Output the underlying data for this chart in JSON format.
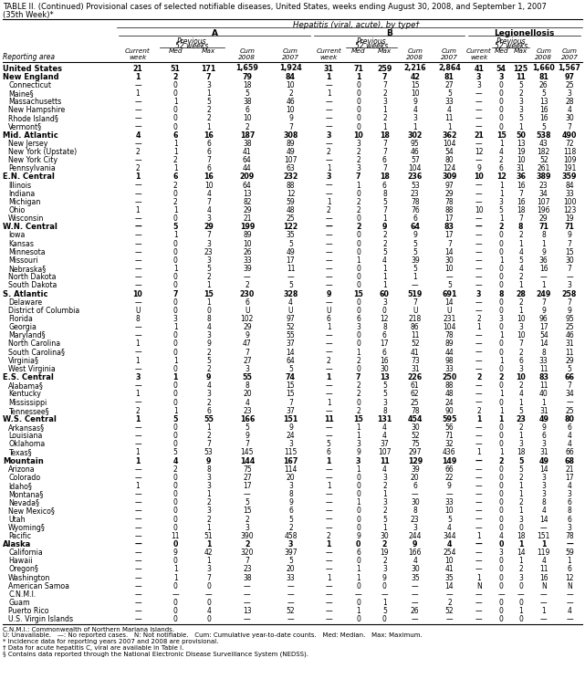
{
  "title1": "TABLE II. (Continued) Provisional cases of selected notifiable diseases, United States, weeks ending August 30, 2008, and September 1, 2007",
  "title2": "(35th Week)*",
  "col_header_top": "Hepatitis (viral, acute), by type†",
  "rows": [
    [
      "United States",
      "21",
      "51",
      "171",
      "1,659",
      "1,924",
      "31",
      "71",
      "259",
      "2,216",
      "2,864",
      "41",
      "54",
      "125",
      "1,660",
      "1,567"
    ],
    [
      "New England",
      "1",
      "2",
      "7",
      "79",
      "84",
      "1",
      "1",
      "7",
      "42",
      "81",
      "3",
      "3",
      "11",
      "81",
      "97"
    ],
    [
      "Connecticut",
      "—",
      "0",
      "3",
      "18",
      "10",
      "—",
      "0",
      "7",
      "15",
      "27",
      "3",
      "0",
      "5",
      "26",
      "25"
    ],
    [
      "Maine§",
      "1",
      "0",
      "1",
      "5",
      "2",
      "1",
      "0",
      "2",
      "10",
      "5",
      "—",
      "0",
      "2",
      "5",
      "3"
    ],
    [
      "Massachusetts",
      "—",
      "1",
      "5",
      "38",
      "46",
      "—",
      "0",
      "3",
      "9",
      "33",
      "—",
      "0",
      "3",
      "13",
      "28"
    ],
    [
      "New Hampshire",
      "—",
      "0",
      "2",
      "6",
      "10",
      "—",
      "0",
      "1",
      "4",
      "4",
      "—",
      "0",
      "3",
      "16",
      "4"
    ],
    [
      "Rhode Island§",
      "—",
      "0",
      "2",
      "10",
      "9",
      "—",
      "0",
      "2",
      "3",
      "11",
      "—",
      "0",
      "5",
      "16",
      "30"
    ],
    [
      "Vermont§",
      "—",
      "0",
      "1",
      "2",
      "7",
      "—",
      "0",
      "1",
      "1",
      "1",
      "—",
      "0",
      "1",
      "5",
      "7"
    ],
    [
      "Mid. Atlantic",
      "4",
      "6",
      "16",
      "187",
      "308",
      "3",
      "10",
      "18",
      "302",
      "362",
      "21",
      "15",
      "50",
      "538",
      "490"
    ],
    [
      "New Jersey",
      "—",
      "1",
      "6",
      "38",
      "89",
      "—",
      "3",
      "7",
      "95",
      "104",
      "—",
      "1",
      "13",
      "43",
      "72"
    ],
    [
      "New York (Upstate)",
      "2",
      "1",
      "6",
      "41",
      "49",
      "2",
      "2",
      "7",
      "46",
      "54",
      "12",
      "4",
      "19",
      "182",
      "118"
    ],
    [
      "New York City",
      "—",
      "2",
      "7",
      "64",
      "107",
      "—",
      "2",
      "6",
      "57",
      "80",
      "—",
      "2",
      "10",
      "52",
      "109"
    ],
    [
      "Pennsylvania",
      "2",
      "1",
      "6",
      "44",
      "63",
      "1",
      "3",
      "7",
      "104",
      "124",
      "9",
      "6",
      "31",
      "261",
      "191"
    ],
    [
      "E.N. Central",
      "1",
      "6",
      "16",
      "209",
      "232",
      "3",
      "7",
      "18",
      "236",
      "309",
      "10",
      "12",
      "36",
      "389",
      "359"
    ],
    [
      "Illinois",
      "—",
      "2",
      "10",
      "64",
      "88",
      "—",
      "1",
      "6",
      "53",
      "97",
      "—",
      "1",
      "16",
      "23",
      "84"
    ],
    [
      "Indiana",
      "—",
      "0",
      "4",
      "13",
      "12",
      "—",
      "0",
      "8",
      "23",
      "29",
      "—",
      "1",
      "7",
      "34",
      "33"
    ],
    [
      "Michigan",
      "—",
      "2",
      "7",
      "82",
      "59",
      "1",
      "2",
      "5",
      "78",
      "78",
      "—",
      "3",
      "16",
      "107",
      "100"
    ],
    [
      "Ohio",
      "1",
      "1",
      "4",
      "29",
      "48",
      "2",
      "2",
      "7",
      "76",
      "88",
      "10",
      "5",
      "18",
      "196",
      "123"
    ],
    [
      "Wisconsin",
      "—",
      "0",
      "3",
      "21",
      "25",
      "—",
      "0",
      "1",
      "6",
      "17",
      "—",
      "1",
      "7",
      "29",
      "19"
    ],
    [
      "W.N. Central",
      "—",
      "5",
      "29",
      "199",
      "122",
      "—",
      "2",
      "9",
      "64",
      "83",
      "—",
      "2",
      "8",
      "71",
      "71"
    ],
    [
      "Iowa",
      "—",
      "1",
      "7",
      "89",
      "35",
      "—",
      "0",
      "2",
      "9",
      "17",
      "—",
      "0",
      "2",
      "8",
      "9"
    ],
    [
      "Kansas",
      "—",
      "0",
      "3",
      "10",
      "5",
      "—",
      "0",
      "2",
      "5",
      "7",
      "—",
      "0",
      "1",
      "1",
      "7"
    ],
    [
      "Minnesota",
      "—",
      "0",
      "23",
      "26",
      "49",
      "—",
      "0",
      "5",
      "5",
      "14",
      "—",
      "0",
      "4",
      "9",
      "15"
    ],
    [
      "Missouri",
      "—",
      "0",
      "3",
      "33",
      "17",
      "—",
      "1",
      "4",
      "39",
      "30",
      "—",
      "1",
      "5",
      "36",
      "30"
    ],
    [
      "Nebraska§",
      "—",
      "1",
      "5",
      "39",
      "11",
      "—",
      "0",
      "1",
      "5",
      "10",
      "—",
      "0",
      "4",
      "16",
      "7"
    ],
    [
      "North Dakota",
      "—",
      "0",
      "2",
      "—",
      "—",
      "—",
      "0",
      "1",
      "1",
      "—",
      "—",
      "0",
      "2",
      "—",
      "—"
    ],
    [
      "South Dakota",
      "—",
      "0",
      "1",
      "2",
      "5",
      "—",
      "0",
      "1",
      "—",
      "5",
      "—",
      "0",
      "1",
      "1",
      "3"
    ],
    [
      "S. Atlantic",
      "10",
      "7",
      "15",
      "230",
      "328",
      "9",
      "15",
      "60",
      "519",
      "691",
      "3",
      "8",
      "28",
      "249",
      "258"
    ],
    [
      "Delaware",
      "—",
      "0",
      "1",
      "6",
      "4",
      "—",
      "0",
      "3",
      "7",
      "14",
      "—",
      "0",
      "2",
      "7",
      "7"
    ],
    [
      "District of Columbia",
      "U",
      "0",
      "0",
      "U",
      "U",
      "U",
      "0",
      "0",
      "U",
      "U",
      "—",
      "0",
      "1",
      "9",
      "9"
    ],
    [
      "Florida",
      "8",
      "3",
      "8",
      "102",
      "97",
      "6",
      "6",
      "12",
      "218",
      "231",
      "2",
      "3",
      "10",
      "96",
      "95"
    ],
    [
      "Georgia",
      "—",
      "1",
      "4",
      "29",
      "52",
      "1",
      "3",
      "8",
      "86",
      "104",
      "1",
      "0",
      "3",
      "17",
      "25"
    ],
    [
      "Maryland§",
      "—",
      "0",
      "3",
      "9",
      "55",
      "—",
      "0",
      "6",
      "11",
      "78",
      "—",
      "1",
      "10",
      "54",
      "46"
    ],
    [
      "North Carolina",
      "1",
      "0",
      "9",
      "47",
      "37",
      "—",
      "0",
      "17",
      "52",
      "89",
      "—",
      "0",
      "7",
      "14",
      "31"
    ],
    [
      "South Carolina§",
      "—",
      "0",
      "2",
      "7",
      "14",
      "—",
      "1",
      "6",
      "41",
      "44",
      "—",
      "0",
      "2",
      "8",
      "11"
    ],
    [
      "Virginia§",
      "1",
      "1",
      "5",
      "27",
      "64",
      "2",
      "2",
      "16",
      "73",
      "98",
      "—",
      "1",
      "6",
      "33",
      "29"
    ],
    [
      "West Virginia",
      "—",
      "0",
      "2",
      "3",
      "5",
      "—",
      "0",
      "30",
      "31",
      "33",
      "—",
      "0",
      "3",
      "11",
      "5"
    ],
    [
      "E.S. Central",
      "3",
      "1",
      "9",
      "55",
      "74",
      "1",
      "7",
      "13",
      "226",
      "250",
      "2",
      "2",
      "10",
      "83",
      "66"
    ],
    [
      "Alabama§",
      "—",
      "0",
      "4",
      "8",
      "15",
      "—",
      "2",
      "5",
      "61",
      "88",
      "—",
      "0",
      "2",
      "11",
      "7"
    ],
    [
      "Kentucky",
      "1",
      "0",
      "3",
      "20",
      "15",
      "—",
      "2",
      "5",
      "62",
      "48",
      "—",
      "1",
      "4",
      "40",
      "34"
    ],
    [
      "Mississippi",
      "—",
      "0",
      "2",
      "4",
      "7",
      "1",
      "0",
      "3",
      "25",
      "24",
      "—",
      "0",
      "1",
      "1",
      "—"
    ],
    [
      "Tennessee§",
      "2",
      "1",
      "6",
      "23",
      "37",
      "—",
      "2",
      "8",
      "78",
      "90",
      "2",
      "1",
      "5",
      "31",
      "25"
    ],
    [
      "W.S. Central",
      "1",
      "5",
      "55",
      "166",
      "151",
      "11",
      "15",
      "131",
      "454",
      "595",
      "1",
      "1",
      "23",
      "49",
      "80"
    ],
    [
      "Arkansas§",
      "—",
      "0",
      "1",
      "5",
      "9",
      "—",
      "1",
      "4",
      "30",
      "56",
      "—",
      "0",
      "2",
      "9",
      "6"
    ],
    [
      "Louisiana",
      "—",
      "0",
      "2",
      "9",
      "24",
      "—",
      "1",
      "4",
      "52",
      "71",
      "—",
      "0",
      "1",
      "6",
      "4"
    ],
    [
      "Oklahoma",
      "—",
      "0",
      "7",
      "7",
      "3",
      "5",
      "3",
      "37",
      "75",
      "32",
      "—",
      "0",
      "3",
      "3",
      "4"
    ],
    [
      "Texas§",
      "1",
      "5",
      "53",
      "145",
      "115",
      "6",
      "9",
      "107",
      "297",
      "436",
      "1",
      "1",
      "18",
      "31",
      "66"
    ],
    [
      "Mountain",
      "1",
      "4",
      "9",
      "144",
      "167",
      "1",
      "3",
      "11",
      "129",
      "149",
      "—",
      "2",
      "5",
      "49",
      "68"
    ],
    [
      "Arizona",
      "—",
      "2",
      "8",
      "75",
      "114",
      "—",
      "1",
      "4",
      "39",
      "66",
      "—",
      "0",
      "5",
      "14",
      "21"
    ],
    [
      "Colorado",
      "—",
      "0",
      "3",
      "27",
      "20",
      "—",
      "0",
      "3",
      "20",
      "22",
      "—",
      "0",
      "2",
      "3",
      "17"
    ],
    [
      "Idaho§",
      "1",
      "0",
      "3",
      "17",
      "3",
      "1",
      "0",
      "2",
      "6",
      "9",
      "—",
      "0",
      "1",
      "3",
      "4"
    ],
    [
      "Montana§",
      "—",
      "0",
      "1",
      "—",
      "8",
      "—",
      "0",
      "1",
      "—",
      "—",
      "—",
      "0",
      "1",
      "3",
      "3"
    ],
    [
      "Nevada§",
      "—",
      "0",
      "2",
      "5",
      "9",
      "—",
      "1",
      "3",
      "30",
      "33",
      "—",
      "0",
      "2",
      "8",
      "6"
    ],
    [
      "New Mexico§",
      "—",
      "0",
      "3",
      "15",
      "6",
      "—",
      "0",
      "2",
      "8",
      "10",
      "—",
      "0",
      "1",
      "4",
      "8"
    ],
    [
      "Utah",
      "—",
      "0",
      "2",
      "2",
      "5",
      "—",
      "0",
      "5",
      "23",
      "5",
      "—",
      "0",
      "3",
      "14",
      "6"
    ],
    [
      "Wyoming§",
      "—",
      "0",
      "1",
      "3",
      "2",
      "—",
      "0",
      "1",
      "3",
      "4",
      "—",
      "0",
      "0",
      "—",
      "3"
    ],
    [
      "Pacific",
      "—",
      "11",
      "51",
      "390",
      "458",
      "2",
      "9",
      "30",
      "244",
      "344",
      "1",
      "4",
      "18",
      "151",
      "78"
    ],
    [
      "Alaska",
      "—",
      "0",
      "1",
      "2",
      "3",
      "1",
      "0",
      "2",
      "9",
      "4",
      "—",
      "0",
      "1",
      "1",
      "—"
    ],
    [
      "California",
      "—",
      "9",
      "42",
      "320",
      "397",
      "—",
      "6",
      "19",
      "166",
      "254",
      "—",
      "3",
      "14",
      "119",
      "59"
    ],
    [
      "Hawaii",
      "—",
      "0",
      "1",
      "7",
      "5",
      "—",
      "0",
      "2",
      "4",
      "10",
      "—",
      "0",
      "1",
      "4",
      "1"
    ],
    [
      "Oregon§",
      "—",
      "1",
      "3",
      "23",
      "20",
      "—",
      "1",
      "3",
      "30",
      "41",
      "—",
      "0",
      "2",
      "11",
      "6"
    ],
    [
      "Washington",
      "—",
      "1",
      "7",
      "38",
      "33",
      "1",
      "1",
      "9",
      "35",
      "35",
      "1",
      "0",
      "3",
      "16",
      "12"
    ],
    [
      "American Samoa",
      "—",
      "0",
      "0",
      "—",
      "—",
      "—",
      "0",
      "0",
      "—",
      "14",
      "N",
      "0",
      "0",
      "N",
      "N"
    ],
    [
      "C.N.M.I.",
      "—",
      "—",
      "—",
      "—",
      "—",
      "—",
      "—",
      "—",
      "—",
      "—",
      "—",
      "—",
      "—",
      "—",
      "—"
    ],
    [
      "Guam",
      "—",
      "0",
      "0",
      "—",
      "—",
      "—",
      "0",
      "1",
      "—",
      "2",
      "—",
      "0",
      "0",
      "—",
      "—"
    ],
    [
      "Puerto Rico",
      "—",
      "0",
      "4",
      "13",
      "52",
      "—",
      "1",
      "5",
      "26",
      "52",
      "—",
      "0",
      "1",
      "1",
      "4"
    ],
    [
      "U.S. Virgin Islands",
      "—",
      "0",
      "0",
      "—",
      "—",
      "—",
      "0",
      "0",
      "—",
      "—",
      "—",
      "0",
      "0",
      "—",
      "—"
    ]
  ],
  "bold_rows": [
    0,
    1,
    8,
    13,
    19,
    27,
    37,
    42,
    47,
    57
  ],
  "footnotes": [
    "C.N.M.I.: Commonwealth of Northern Mariana Islands.",
    "U: Unavailable.   —: No reported cases.   N: Not notifiable.   Cum: Cumulative year-to-date counts.   Med: Median.   Max: Maximum.",
    "* Incidence data for reporting years 2007 and 2008 are provisional.",
    "† Data for acute hepatitis C, viral are available in Table I.",
    "§ Contains data reported through the National Electronic Disease Surveillance System (NEDSS)."
  ]
}
